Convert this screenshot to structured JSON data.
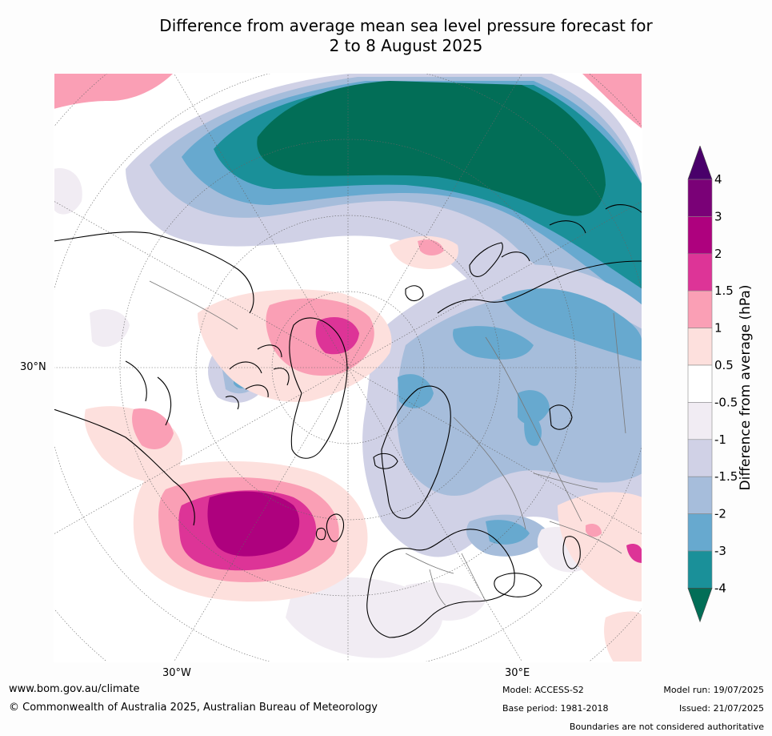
{
  "title_line1": "Difference from average mean sea level pressure forecast for",
  "title_line2": "2 to 8 August 2025",
  "map": {
    "labels": {
      "lat30n": "30°N",
      "lon30w": "30°W",
      "lon30e": "30°E"
    },
    "colors": {
      "land": "#ffffff",
      "coast": "#000000",
      "border": "#777777",
      "teal_dark": "#026e57",
      "teal": "#1a9099",
      "blue": "#67a9cf",
      "blue_light": "#a6bddb",
      "lav": "#d0d1e6",
      "lav_light": "#f1ecf3",
      "pink_light": "#fde0dd",
      "pink": "#fa9fb5",
      "magenta": "#dd3497",
      "magenta_dark": "#ae017e",
      "purple": "#7a0177",
      "purple_dark": "#49006a"
    }
  },
  "colorbar": {
    "title": "Difference from average (hPa)",
    "ticks": [
      "4",
      "3",
      "2",
      "1.5",
      "1",
      "0.5",
      "-0.5",
      "-1",
      "-1.5",
      "-2",
      "-3",
      "-4"
    ],
    "bands": [
      "#7a0177",
      "#ae017e",
      "#dd3497",
      "#fa9fb5",
      "#fde0dd",
      "#ffffff",
      "#f1ecf3",
      "#d0d1e6",
      "#a6bddb",
      "#67a9cf",
      "#1a9099"
    ],
    "top_arrow": "#49006a",
    "bottom_arrow": "#026e57"
  },
  "footer": {
    "website": "www.bom.gov.au/climate",
    "copyright": "© Commonwealth of Australia 2025, Australian Bureau of Meteorology",
    "model": "Model: ACCESS-S2",
    "base_period": "Base period: 1981-2018",
    "model_run": "Model run: 19/07/2025",
    "issued": "Issued: 21/07/2025",
    "boundaries": "Boundaries are not considered authoritative"
  }
}
